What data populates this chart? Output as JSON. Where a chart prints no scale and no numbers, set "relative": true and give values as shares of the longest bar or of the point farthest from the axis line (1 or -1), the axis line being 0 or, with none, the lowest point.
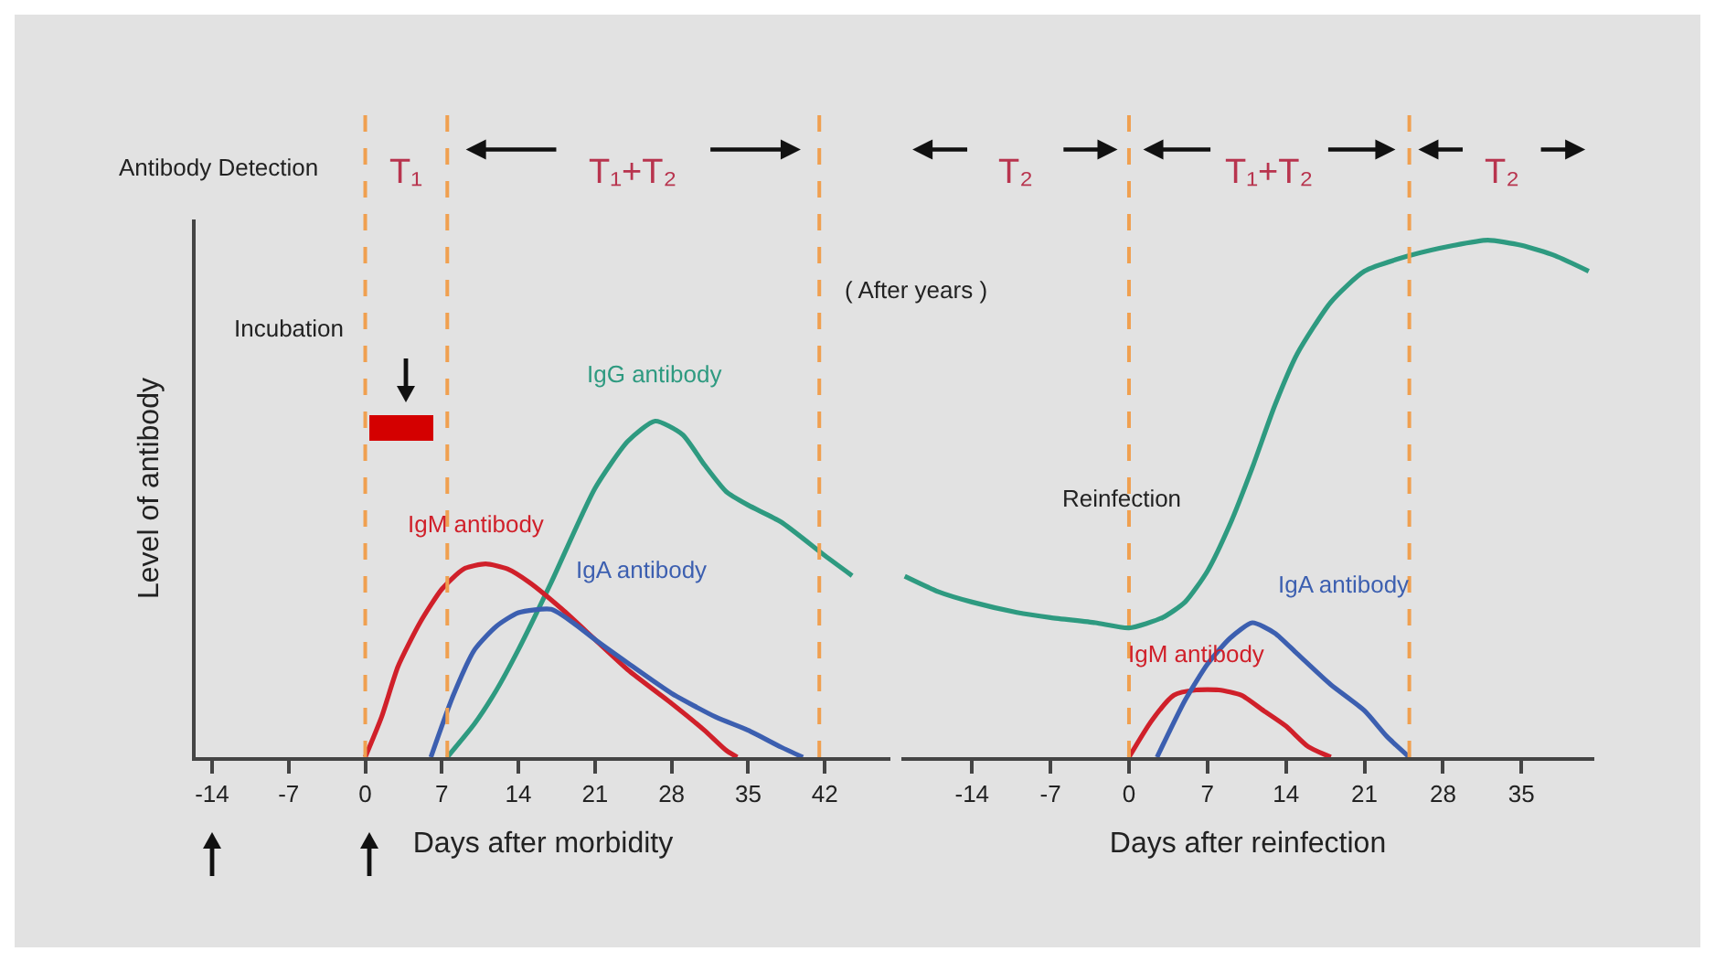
{
  "chart_data": [
    {
      "type": "line",
      "relative": true,
      "ylabel": "Level of antibody",
      "xlabel": "Days after morbidity",
      "xlim": [
        -15.5,
        48
      ],
      "xticks": [
        -14,
        -7,
        0,
        7,
        14,
        21,
        28,
        35,
        42
      ],
      "grid": false,
      "legend": false,
      "marker": "none",
      "line_style": "solid",
      "annotations": [
        "Antibody Detection",
        "T₁",
        "T₁+T₂",
        "Incubation",
        "( After years )"
      ],
      "ref_lines": [
        {
          "axis": "x",
          "value": 0,
          "color": "#f0a050",
          "line_style": "dashed"
        },
        {
          "axis": "x",
          "value": 7.5,
          "color": "#f0a050",
          "line_style": "dashed"
        },
        {
          "axis": "x",
          "value": 41.5,
          "color": "#f0a050",
          "line_style": "dashed"
        }
      ],
      "series": [
        {
          "name": "IgG antibody",
          "color": "#2e9a80",
          "x": [
            7.5,
            10,
            12,
            14,
            17,
            21,
            24,
            26.5,
            29,
            31,
            33,
            35,
            38,
            42,
            44.5
          ],
          "values": [
            0,
            0.1,
            0.2,
            0.32,
            0.52,
            0.8,
            0.94,
            1,
            0.96,
            0.87,
            0.79,
            0.75,
            0.7,
            0.6,
            0.54
          ]
        },
        {
          "name": "IgM antibody",
          "color": "#d0202a",
          "x": [
            0,
            1.5,
            3,
            5,
            7,
            9,
            11,
            13,
            15,
            18,
            21,
            24,
            28,
            31,
            33,
            34
          ],
          "values": [
            0,
            0.12,
            0.27,
            0.4,
            0.5,
            0.56,
            0.575,
            0.56,
            0.52,
            0.44,
            0.35,
            0.26,
            0.16,
            0.08,
            0.02,
            0
          ]
        },
        {
          "name": "IgA antibody",
          "color": "#3c5fb0",
          "x": [
            6,
            8,
            10,
            12,
            14,
            17,
            19,
            21,
            24,
            28,
            32,
            35,
            38,
            40
          ],
          "values": [
            0,
            0.18,
            0.32,
            0.39,
            0.43,
            0.44,
            0.4,
            0.35,
            0.28,
            0.19,
            0.12,
            0.08,
            0.03,
            0
          ]
        }
      ]
    },
    {
      "type": "line",
      "relative": true,
      "xlabel": "Days after reinfection",
      "xlim": [
        -20.3,
        41.5
      ],
      "xticks": [
        -14,
        -7,
        0,
        7,
        14,
        21,
        28,
        35
      ],
      "grid": false,
      "legend": false,
      "marker": "none",
      "line_style": "solid",
      "annotations": [
        "T₂",
        "T₁+T₂",
        "T₂",
        "Reinfection"
      ],
      "ref_lines": [
        {
          "axis": "x",
          "value": 0,
          "color": "#f0a050",
          "line_style": "dashed"
        },
        {
          "axis": "x",
          "value": 25,
          "color": "#f0a050",
          "line_style": "dashed"
        }
      ],
      "series": [
        {
          "color": "#2e9a80",
          "x": [
            -20,
            -17,
            -14,
            -10,
            -7,
            -3,
            0,
            3,
            5,
            7,
            9,
            11,
            13,
            15,
            18,
            21,
            25,
            29,
            32,
            35,
            38,
            41
          ],
          "values": [
            0.35,
            0.32,
            0.3,
            0.28,
            0.27,
            0.26,
            0.25,
            0.27,
            0.3,
            0.36,
            0.45,
            0.56,
            0.68,
            0.78,
            0.88,
            0.94,
            0.97,
            0.99,
            1,
            0.99,
            0.97,
            0.94
          ]
        },
        {
          "name": "IgM antibody",
          "color": "#d0202a",
          "x": [
            0,
            2,
            4,
            6,
            8,
            10,
            12,
            14,
            16,
            18
          ],
          "values": [
            0,
            0.07,
            0.12,
            0.13,
            0.13,
            0.12,
            0.09,
            0.06,
            0.02,
            0
          ]
        },
        {
          "name": "IgA antibody",
          "color": "#3c5fb0",
          "x": [
            2.5,
            5,
            7,
            9,
            11,
            13,
            15,
            18,
            21,
            23,
            25
          ],
          "values": [
            0,
            0.11,
            0.18,
            0.23,
            0.26,
            0.24,
            0.2,
            0.14,
            0.09,
            0.04,
            0
          ]
        }
      ]
    }
  ]
}
